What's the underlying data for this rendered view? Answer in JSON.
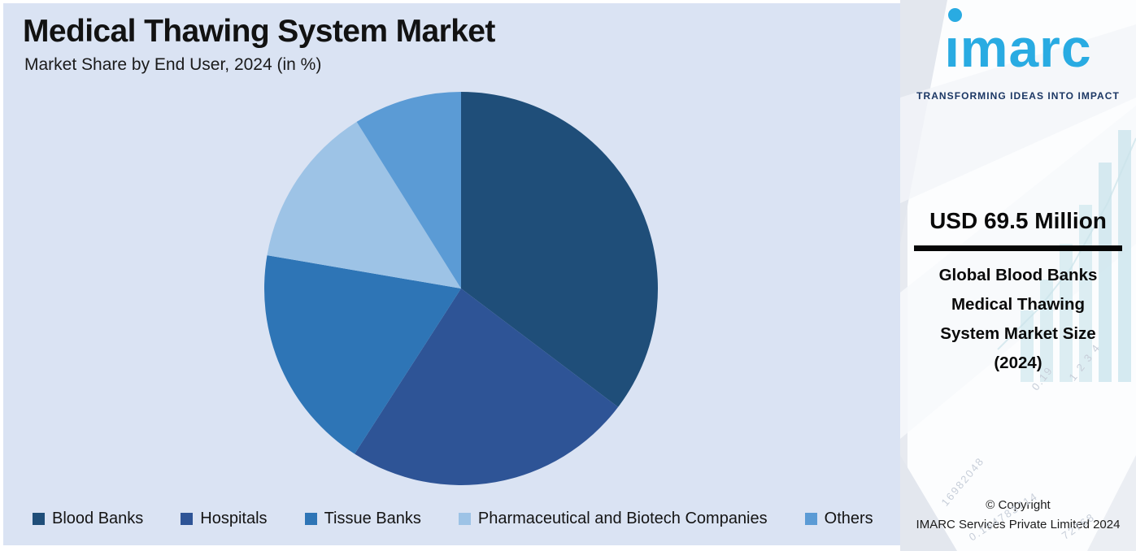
{
  "chart": {
    "title": "Medical Thawing System Market",
    "subtitle": "Market Share by End User, 2024 (in %)",
    "panel_bg": "#DAE3F3",
    "text_color": "#121212"
  },
  "chart_data": {
    "type": "pie",
    "title": "Medical Thawing System Market",
    "subtitle": "Market Share by End User, 2024 (in %)",
    "unit": "%",
    "start_angle_deg": 0,
    "direction": "clockwise",
    "legend_position": "bottom",
    "slices": [
      {
        "label": "Blood Banks",
        "value": 35.3,
        "color": "#1F4E79"
      },
      {
        "label": "Hospitals",
        "value": 23.8,
        "color": "#2E5496"
      },
      {
        "label": "Tissue Banks",
        "value": 18.6,
        "color": "#2E75B6"
      },
      {
        "label": "Pharmaceutical and Biotech Companies",
        "value": 13.4,
        "color": "#9DC3E6"
      },
      {
        "label": "Others",
        "value": 8.9,
        "color": "#5B9BD5"
      }
    ]
  },
  "sidebar": {
    "logo_text": "imarc",
    "logo_color": "#29ABE2",
    "tagline": "TRANSFORMING IDEAS INTO IMPACT",
    "value_headline": "USD 69.5 Million",
    "market_label_lines": [
      "Global Blood Banks",
      "Medical Thawing",
      "System Market Size",
      "(2024)"
    ],
    "copyright_line1": "© Copyright",
    "copyright_line2": "IMARC Services Private Limited 2024",
    "watermark_numbers": [
      "16982048",
      "0.154783714",
      "72768",
      "1 2 3 4",
      "0.19"
    ]
  }
}
